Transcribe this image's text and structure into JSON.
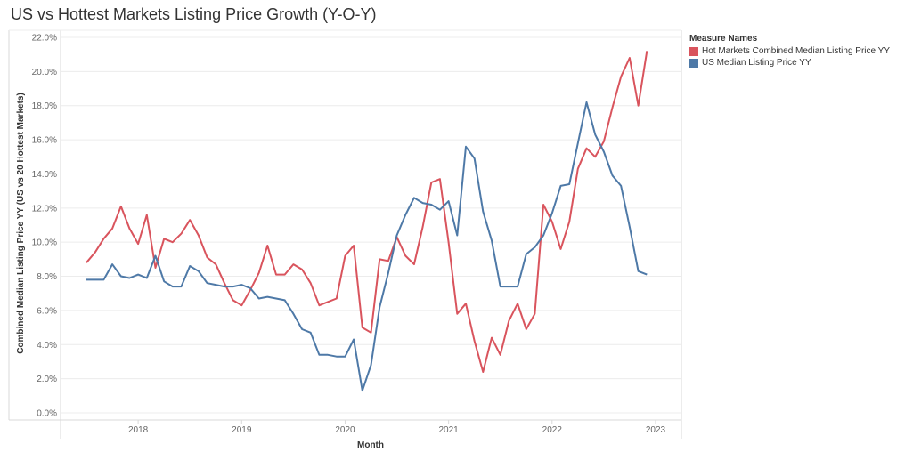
{
  "title": "US vs Hottest Markets Listing Price Growth (Y-O-Y)",
  "legend": {
    "title": "Measure Names",
    "items": [
      {
        "label": "Hot Markets Combined Median Listing Price YY",
        "color": "#d9545d"
      },
      {
        "label": "US Median Listing Price YY",
        "color": "#4e79a7"
      }
    ]
  },
  "chart_data": {
    "type": "line",
    "xlabel": "Month",
    "ylabel": "Combined Median Listing Price YY (US vs 20 Hottest Markets)",
    "x_ticks": [
      "2018",
      "2019",
      "2020",
      "2021",
      "2022",
      "2023"
    ],
    "y_ticks": [
      "0.0%",
      "2.0%",
      "4.0%",
      "6.0%",
      "8.0%",
      "10.0%",
      "12.0%",
      "14.0%",
      "16.0%",
      "18.0%",
      "20.0%",
      "22.0%"
    ],
    "ylim": [
      0,
      22
    ],
    "xlim": [
      "2017-04",
      "2023-04"
    ],
    "grid": true,
    "x": [
      "2017-07",
      "2017-08",
      "2017-09",
      "2017-10",
      "2017-11",
      "2017-12",
      "2018-01",
      "2018-02",
      "2018-03",
      "2018-04",
      "2018-05",
      "2018-06",
      "2018-07",
      "2018-08",
      "2018-09",
      "2018-10",
      "2018-11",
      "2018-12",
      "2019-01",
      "2019-02",
      "2019-03",
      "2019-04",
      "2019-05",
      "2019-06",
      "2019-07",
      "2019-08",
      "2019-09",
      "2019-10",
      "2019-11",
      "2019-12",
      "2020-01",
      "2020-02",
      "2020-03",
      "2020-04",
      "2020-05",
      "2020-06",
      "2020-07",
      "2020-08",
      "2020-09",
      "2020-10",
      "2020-11",
      "2020-12",
      "2021-01",
      "2021-02",
      "2021-03",
      "2021-04",
      "2021-05",
      "2021-06",
      "2021-07",
      "2021-08",
      "2021-09",
      "2021-10",
      "2021-11",
      "2021-12",
      "2022-01",
      "2022-02",
      "2022-03",
      "2022-04",
      "2022-05",
      "2022-06",
      "2022-07",
      "2022-08",
      "2022-09",
      "2022-10",
      "2022-11",
      "2022-12",
      "2023-01"
    ],
    "series": [
      {
        "name": "Hot Markets Combined Median Listing Price YY",
        "color": "#d9545d",
        "values": [
          8.8,
          9.4,
          10.2,
          10.8,
          12.1,
          10.8,
          9.9,
          11.6,
          8.5,
          10.2,
          10.0,
          10.5,
          11.3,
          10.4,
          9.1,
          8.7,
          7.6,
          6.6,
          6.3,
          7.2,
          8.2,
          9.8,
          8.1,
          8.1,
          8.7,
          8.4,
          7.6,
          6.3,
          6.5,
          6.7,
          9.2,
          9.8,
          5.0,
          4.7,
          9.0,
          8.9,
          10.3,
          9.2,
          8.7,
          10.9,
          13.5,
          13.7,
          10.0,
          5.8,
          6.4,
          4.2,
          2.4,
          4.4,
          3.4,
          5.4,
          6.4,
          4.9,
          5.8,
          12.2,
          11.2,
          9.6,
          11.2,
          14.3,
          15.5,
          15.0,
          15.9,
          17.9,
          19.7,
          20.8,
          18.0,
          21.2,
          null
        ]
      },
      {
        "name": "US Median Listing Price YY",
        "color": "#4e79a7",
        "values": [
          7.8,
          7.8,
          7.8,
          8.7,
          8.0,
          7.9,
          8.1,
          7.9,
          9.2,
          7.7,
          7.4,
          7.4,
          8.6,
          8.3,
          7.6,
          7.5,
          7.4,
          7.4,
          7.5,
          7.3,
          6.7,
          6.8,
          6.7,
          6.6,
          5.8,
          4.9,
          4.7,
          3.4,
          3.4,
          3.3,
          3.3,
          4.3,
          1.3,
          2.8,
          6.2,
          8.2,
          10.4,
          11.6,
          12.6,
          12.3,
          12.2,
          11.9,
          12.4,
          10.4,
          15.6,
          14.9,
          11.8,
          10.1,
          7.4,
          7.4,
          7.4,
          9.3,
          9.7,
          10.4,
          11.7,
          13.3,
          13.4,
          15.8,
          18.2,
          16.3,
          15.3,
          13.9,
          13.3,
          10.9,
          8.3,
          8.1,
          null
        ]
      }
    ]
  }
}
